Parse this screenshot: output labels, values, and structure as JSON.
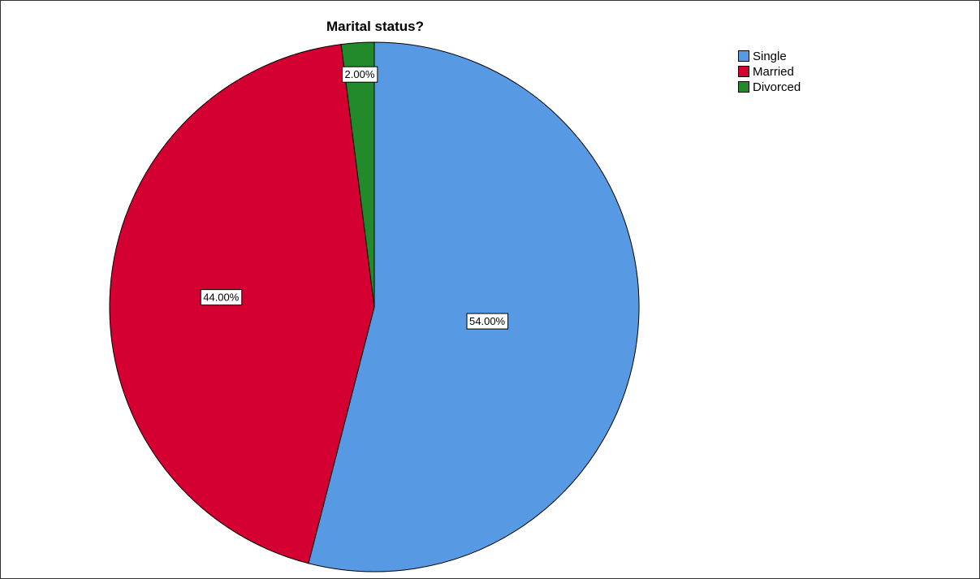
{
  "chart_data": {
    "type": "pie",
    "title": "Marital status?",
    "legend_position": "top-right",
    "slices": [
      {
        "name": "Single",
        "value": 54.0,
        "label": "54.00%",
        "color": "#5899E3"
      },
      {
        "name": "Married",
        "value": 44.0,
        "label": "44.00%",
        "color": "#D40031"
      },
      {
        "name": "Divorced",
        "value": 2.0,
        "label": "2.00%",
        "color": "#238A2C"
      }
    ]
  }
}
